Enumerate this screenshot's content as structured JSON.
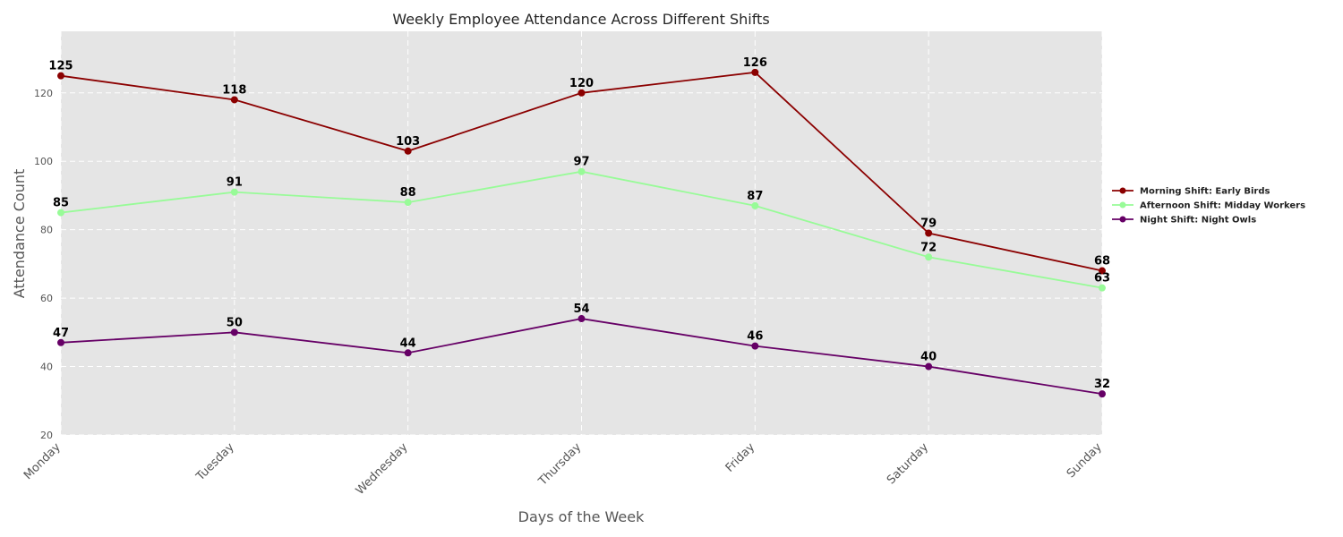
{
  "chart_data": {
    "type": "line",
    "title": "Weekly Employee Attendance Across Different Shifts",
    "xlabel": "Days of the Week",
    "ylabel": "Attendance Count",
    "categories": [
      "Monday",
      "Tuesday",
      "Wednesday",
      "Thursday",
      "Friday",
      "Saturday",
      "Sunday"
    ],
    "ylim": [
      20,
      138
    ],
    "yticks": [
      20,
      40,
      60,
      80,
      100,
      120
    ],
    "grid": true,
    "legend_position": "right",
    "series": [
      {
        "name": "Morning Shift: Early Birds",
        "color": "#8b0000",
        "values": [
          125,
          118,
          103,
          120,
          126,
          79,
          68
        ]
      },
      {
        "name": "Afternoon Shift: Midday Workers",
        "color": "#98fb98",
        "values": [
          85,
          91,
          88,
          97,
          87,
          72,
          63
        ]
      },
      {
        "name": "Night Shift: Night Owls",
        "color": "#660066",
        "values": [
          47,
          50,
          44,
          54,
          46,
          40,
          32
        ]
      }
    ]
  }
}
